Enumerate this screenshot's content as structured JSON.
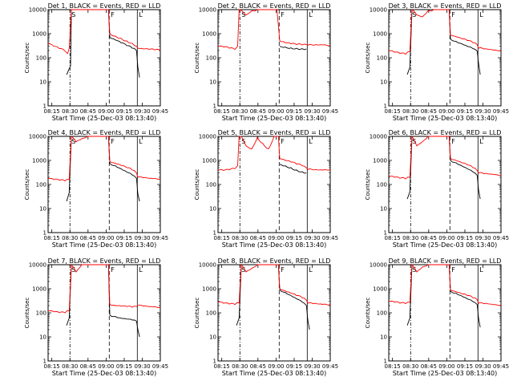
{
  "chart_data": [
    {
      "type": "line",
      "title": "Det 1, BLACK = Events, RED = LLD",
      "xlabel": "Start Time (25-Dec-03 08:13:40)",
      "ylabel": "Counts/sec",
      "yscale": "log",
      "ylim": [
        1,
        10000
      ],
      "xlim": [
        0,
        40
      ],
      "x_ticks": [
        "08:15",
        "08:30",
        "08:45",
        "09:00",
        "09:15",
        "09:30",
        "09:45"
      ],
      "y_ticks": [
        "1",
        "10",
        "100",
        "1000",
        "10000"
      ],
      "markers": [
        {
          "label": "S",
          "x": 7.8
        },
        {
          "label": "F",
          "x": 21.8
        },
        {
          "label": "L",
          "x": 31.8
        }
      ],
      "series": [
        {
          "name": "BLACK = Events",
          "color": "#000000",
          "x": [
            6.6,
            7.0,
            7.5,
            8.0,
            8.3,
            21.5,
            22,
            24,
            26,
            28,
            30,
            31.5,
            32,
            32.6
          ],
          "y": [
            20,
            25,
            35,
            45,
            10000,
            10000,
            700,
            550,
            420,
            320,
            250,
            200,
            40,
            15
          ]
        },
        {
          "name": "RED = LLD",
          "color": "#ff0000",
          "x": [
            0,
            2,
            4,
            6,
            7,
            7.5,
            8.3,
            21.5,
            22,
            24,
            26,
            28,
            30,
            31.5,
            32,
            34,
            36,
            38,
            40
          ],
          "y": [
            400,
            300,
            240,
            190,
            150,
            250,
            10000,
            10000,
            1000,
            800,
            650,
            500,
            400,
            300,
            250,
            230,
            220,
            210,
            200
          ]
        }
      ]
    },
    {
      "type": "line",
      "title": "Det 2, BLACK = Events, RED = LLD",
      "xlabel": "Start Time (25-Dec-03 08:13:40)",
      "ylabel": "Counts/sec",
      "yscale": "log",
      "ylim": [
        1,
        10000
      ],
      "xlim": [
        0,
        40
      ],
      "x_ticks": [
        "08:15",
        "08:30",
        "08:45",
        "09:00",
        "09:15",
        "09:30",
        "09:45"
      ],
      "y_ticks": [
        "1",
        "10",
        "100",
        "1000",
        "10000"
      ],
      "markers": [
        {
          "label": "S",
          "x": 7.8
        },
        {
          "label": "F",
          "x": 21.8
        },
        {
          "label": "L",
          "x": 31.8
        }
      ],
      "series": [
        {
          "name": "BLACK = Events",
          "color": "#000000",
          "x": [
            22,
            24,
            26,
            28,
            30,
            31.5
          ],
          "y": [
            300,
            280,
            260,
            250,
            240,
            230
          ]
        },
        {
          "name": "RED = LLD",
          "color": "#ff0000",
          "x": [
            0,
            2,
            4,
            6,
            7,
            7.5,
            8,
            10,
            12,
            14,
            16,
            18,
            20,
            21,
            22,
            24,
            26,
            28,
            30,
            32,
            34,
            36,
            38,
            40
          ],
          "y": [
            300,
            280,
            250,
            220,
            300,
            10000,
            10000,
            6000,
            9000,
            10000,
            10000,
            10000,
            10000,
            10000,
            500,
            420,
            380,
            350,
            340,
            330,
            330,
            340,
            350,
            320
          ]
        }
      ]
    },
    {
      "type": "line",
      "title": "Det 3, BLACK = Events, RED = LLD",
      "xlabel": "Start Time (25-Dec-03 08:13:40)",
      "ylabel": "Counts/sec",
      "yscale": "log",
      "ylim": [
        1,
        10000
      ],
      "xlim": [
        0,
        40
      ],
      "x_ticks": [
        "08:15",
        "08:30",
        "08:45",
        "09:00",
        "09:15",
        "09:30",
        "09:45"
      ],
      "y_ticks": [
        "1",
        "10",
        "100",
        "1000",
        "10000"
      ],
      "markers": [
        {
          "label": "S",
          "x": 7.8
        },
        {
          "label": "F",
          "x": 21.8
        },
        {
          "label": "L",
          "x": 31.8
        }
      ],
      "series": [
        {
          "name": "BLACK = Events",
          "color": "#000000",
          "x": [
            6.6,
            7.5,
            8.3,
            21.5,
            22,
            24,
            26,
            28,
            30,
            31.5,
            32,
            32.6
          ],
          "y": [
            20,
            40,
            10000,
            10000,
            600,
            480,
            380,
            300,
            240,
            190,
            60,
            20
          ]
        },
        {
          "name": "RED = LLD",
          "color": "#ff0000",
          "x": [
            0,
            2,
            4,
            6,
            7.5,
            8.3,
            10,
            12,
            14,
            16,
            18,
            20,
            21.5,
            22,
            24,
            26,
            28,
            30,
            31.5,
            32,
            34,
            36,
            38,
            40
          ],
          "y": [
            200,
            170,
            150,
            140,
            180,
            10000,
            6000,
            5000,
            9000,
            10000,
            10000,
            10000,
            10000,
            900,
            750,
            620,
            520,
            420,
            350,
            250,
            230,
            220,
            210,
            200
          ]
        }
      ]
    },
    {
      "type": "line",
      "title": "Det 4, BLACK = Events, RED = LLD",
      "xlabel": "Start Time (25-Dec-03 08:13:40)",
      "ylabel": "Counts/sec",
      "yscale": "log",
      "ylim": [
        1,
        10000
      ],
      "xlim": [
        0,
        40
      ],
      "x_ticks": [
        "08:15",
        "08:30",
        "08:45",
        "09:00",
        "09:15",
        "09:30",
        "09:45"
      ],
      "y_ticks": [
        "1",
        "10",
        "100",
        "1000",
        "10000"
      ],
      "markers": [
        {
          "label": "S",
          "x": 7.8
        },
        {
          "label": "F",
          "x": 21.8
        },
        {
          "label": "L",
          "x": 31.8
        }
      ],
      "series": [
        {
          "name": "BLACK = Events",
          "color": "#000000",
          "x": [
            6.6,
            7.5,
            8.3,
            21.5,
            22,
            24,
            26,
            28,
            30,
            31.5,
            32,
            32.6
          ],
          "y": [
            20,
            45,
            10000,
            10000,
            750,
            600,
            450,
            330,
            250,
            180,
            40,
            20
          ]
        },
        {
          "name": "RED = LLD",
          "color": "#ff0000",
          "x": [
            0,
            2,
            4,
            6,
            7.5,
            8.3,
            10,
            12,
            14,
            16,
            18,
            20,
            21.5,
            22,
            24,
            26,
            28,
            30,
            31.5,
            32,
            34,
            36,
            38,
            40
          ],
          "y": [
            180,
            160,
            150,
            140,
            160,
            10000,
            6000,
            8000,
            10000,
            10000,
            10000,
            10000,
            10000,
            900,
            750,
            620,
            500,
            400,
            300,
            200,
            190,
            180,
            180,
            170
          ]
        }
      ]
    },
    {
      "type": "line",
      "title": "Det 5, BLACK = Events, RED = LLD",
      "xlabel": "Start Time (25-Dec-03 08:13:40)",
      "ylabel": "Counts/sec",
      "yscale": "log",
      "ylim": [
        1,
        10000
      ],
      "xlim": [
        0,
        40
      ],
      "x_ticks": [
        "08:15",
        "08:30",
        "08:45",
        "09:00",
        "09:15",
        "09:30",
        "09:45"
      ],
      "y_ticks": [
        "1",
        "10",
        "100",
        "1000",
        "10000"
      ],
      "markers": [
        {
          "label": "S",
          "x": 7.8
        },
        {
          "label": "F",
          "x": 21.8
        },
        {
          "label": "L",
          "x": 31.8
        }
      ],
      "series": [
        {
          "name": "BLACK = Events",
          "color": "#000000",
          "x": [
            22,
            24,
            26,
            28,
            30,
            31.5
          ],
          "y": [
            700,
            600,
            500,
            400,
            340,
            300
          ]
        },
        {
          "name": "RED = LLD",
          "color": "#ff0000",
          "x": [
            0,
            2,
            4,
            6,
            7,
            7.5,
            8.3,
            10,
            12,
            14,
            16,
            18,
            20,
            21.5,
            22,
            24,
            26,
            28,
            30,
            32,
            34,
            36,
            38,
            40
          ],
          "y": [
            400,
            380,
            400,
            450,
            600,
            10000,
            10000,
            4000,
            3000,
            9000,
            5000,
            3000,
            10000,
            10000,
            1200,
            1000,
            850,
            700,
            600,
            420,
            400,
            400,
            410,
            420
          ]
        }
      ]
    },
    {
      "type": "line",
      "title": "Det 6, BLACK = Events, RED = LLD",
      "xlabel": "Start Time (25-Dec-03 08:13:40)",
      "ylabel": "Counts/sec",
      "yscale": "log",
      "ylim": [
        1,
        10000
      ],
      "xlim": [
        0,
        40
      ],
      "x_ticks": [
        "08:15",
        "08:30",
        "08:45",
        "09:00",
        "09:15",
        "09:30",
        "09:45"
      ],
      "y_ticks": [
        "1",
        "10",
        "100",
        "1000",
        "10000"
      ],
      "markers": [
        {
          "label": "S",
          "x": 7.8
        },
        {
          "label": "F",
          "x": 21.8
        },
        {
          "label": "L",
          "x": 31.8
        }
      ],
      "series": [
        {
          "name": "BLACK = Events",
          "color": "#000000",
          "x": [
            6.6,
            7.5,
            8.3,
            21.5,
            22,
            24,
            26,
            28,
            30,
            31.5,
            32,
            32.6
          ],
          "y": [
            25,
            50,
            10000,
            10000,
            1000,
            800,
            600,
            450,
            330,
            240,
            60,
            25
          ]
        },
        {
          "name": "RED = LLD",
          "color": "#ff0000",
          "x": [
            0,
            2,
            4,
            6,
            7.5,
            8.3,
            10,
            12,
            14,
            16,
            18,
            20,
            21.5,
            22,
            24,
            26,
            28,
            30,
            31.5,
            32,
            34,
            36,
            38,
            40
          ],
          "y": [
            220,
            200,
            180,
            170,
            200,
            10000,
            4000,
            6000,
            10000,
            10000,
            10000,
            10000,
            10000,
            1200,
            1000,
            800,
            650,
            500,
            380,
            300,
            280,
            270,
            260,
            250
          ]
        }
      ]
    },
    {
      "type": "line",
      "title": "Det 7, BLACK = Events, RED = LLD",
      "xlabel": "Start Time (25-Dec-03 08:13:40)",
      "ylabel": "Counts/sec",
      "yscale": "log",
      "ylim": [
        1,
        10000
      ],
      "xlim": [
        0,
        40
      ],
      "x_ticks": [
        "08:15",
        "08:30",
        "08:45",
        "09:00",
        "09:15",
        "09:30",
        "09:45"
      ],
      "y_ticks": [
        "1",
        "10",
        "100",
        "1000",
        "10000"
      ],
      "markers": [
        {
          "label": "S",
          "x": 7.8
        },
        {
          "label": "F",
          "x": 21.8
        },
        {
          "label": "L",
          "x": 31.8
        }
      ],
      "series": [
        {
          "name": "BLACK = Events",
          "color": "#000000",
          "x": [
            6.6,
            7.5,
            8.3,
            21.5,
            22,
            24,
            26,
            28,
            30,
            31.5,
            32,
            32.6
          ],
          "y": [
            30,
            60,
            10000,
            10000,
            80,
            70,
            60,
            55,
            50,
            45,
            20,
            10
          ]
        },
        {
          "name": "RED = LLD",
          "color": "#ff0000",
          "x": [
            0,
            2,
            4,
            6,
            7.5,
            8.3,
            10,
            12,
            14,
            16,
            18,
            20,
            21.5,
            22,
            24,
            26,
            28,
            30,
            31.5,
            32,
            34,
            36,
            38,
            40
          ],
          "y": [
            120,
            110,
            100,
            100,
            120,
            10000,
            5000,
            10000,
            10000,
            10000,
            10000,
            10000,
            10000,
            220,
            200,
            190,
            180,
            170,
            180,
            200,
            190,
            180,
            180,
            170
          ]
        }
      ]
    },
    {
      "type": "line",
      "title": "Det 8, BLACK = Events, RED = LLD",
      "xlabel": "Start Time (25-Dec-03 08:13:40)",
      "ylabel": "Counts/sec",
      "yscale": "log",
      "ylim": [
        1,
        10000
      ],
      "xlim": [
        0,
        40
      ],
      "x_ticks": [
        "08:15",
        "08:30",
        "08:45",
        "09:00",
        "09:15",
        "09:30",
        "09:45"
      ],
      "y_ticks": [
        "1",
        "10",
        "100",
        "1000",
        "10000"
      ],
      "markers": [
        {
          "label": "S",
          "x": 7.8
        },
        {
          "label": "F",
          "x": 21.8
        },
        {
          "label": "L",
          "x": 31.8
        }
      ],
      "series": [
        {
          "name": "BLACK = Events",
          "color": "#000000",
          "x": [
            6.6,
            7.5,
            8.3,
            21.5,
            22,
            24,
            26,
            28,
            30,
            31.5,
            32,
            32.6
          ],
          "y": [
            30,
            60,
            10000,
            10000,
            900,
            700,
            520,
            380,
            280,
            200,
            50,
            20
          ]
        },
        {
          "name": "RED = LLD",
          "color": "#ff0000",
          "x": [
            0,
            2,
            4,
            6,
            7.5,
            8.3,
            10,
            12,
            14,
            16,
            18,
            20,
            21.5,
            22,
            24,
            26,
            28,
            30,
            31.5,
            32,
            34,
            36,
            38,
            40
          ],
          "y": [
            280,
            250,
            230,
            220,
            260,
            10000,
            5000,
            7000,
            10000,
            10000,
            10000,
            10000,
            10000,
            1000,
            800,
            650,
            520,
            420,
            330,
            250,
            240,
            230,
            230,
            220
          ]
        }
      ]
    },
    {
      "type": "line",
      "title": "Det 9, BLACK = Events, RED = LLD",
      "xlabel": "Start Time (25-Dec-03 08:13:40)",
      "ylabel": "Counts/sec",
      "yscale": "log",
      "ylim": [
        1,
        10000
      ],
      "xlim": [
        0,
        40
      ],
      "x_ticks": [
        "08:15",
        "08:30",
        "08:45",
        "09:00",
        "09:15",
        "09:30",
        "09:45"
      ],
      "y_ticks": [
        "1",
        "10",
        "100",
        "1000",
        "10000"
      ],
      "markers": [
        {
          "label": "S",
          "x": 7.8
        },
        {
          "label": "F",
          "x": 21.8
        },
        {
          "label": "L",
          "x": 31.8
        }
      ],
      "series": [
        {
          "name": "BLACK = Events",
          "color": "#000000",
          "x": [
            6.6,
            7.5,
            8.3,
            21.5,
            22,
            24,
            26,
            28,
            30,
            31.5,
            32,
            32.6
          ],
          "y": [
            30,
            60,
            10000,
            10000,
            800,
            650,
            500,
            380,
            290,
            220,
            60,
            25
          ]
        },
        {
          "name": "RED = LLD",
          "color": "#ff0000",
          "x": [
            0,
            2,
            4,
            6,
            7.5,
            8.3,
            10,
            12,
            14,
            16,
            18,
            20,
            21.5,
            22,
            24,
            26,
            28,
            30,
            31.5,
            32,
            34,
            36,
            38,
            40
          ],
          "y": [
            300,
            280,
            250,
            240,
            270,
            10000,
            5000,
            8000,
            10000,
            10000,
            10000,
            10000,
            10000,
            900,
            750,
            620,
            520,
            420,
            350,
            250,
            240,
            230,
            220,
            210
          ]
        }
      ]
    }
  ]
}
